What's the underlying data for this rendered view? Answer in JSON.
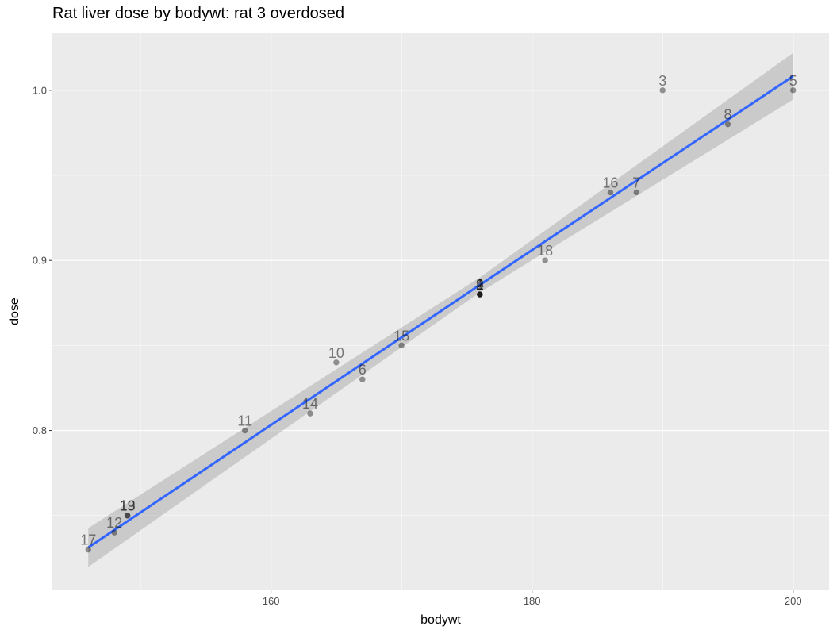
{
  "chart_data": {
    "type": "scatter",
    "title": "Rat liver dose by bodywt: rat 3 overdosed",
    "xlabel": "bodywt",
    "ylabel": "dose",
    "xlim": [
      143.25,
      202.75
    ],
    "ylim": [
      0.7065,
      1.0335
    ],
    "x_ticks": [
      160,
      180,
      200
    ],
    "x_tick_labels": [
      "160",
      "180",
      "200"
    ],
    "y_ticks": [
      0.8,
      0.9,
      1.0
    ],
    "y_tick_labels": [
      "0.8",
      "0.9",
      "1.0"
    ],
    "x_minor": [
      150,
      170,
      190
    ],
    "y_minor": [
      0.75,
      0.85,
      0.95
    ],
    "grid": true,
    "legend": "none",
    "colors": {
      "panel": "#ebebeb",
      "grid": "#ffffff",
      "point": "#000000",
      "fit_line": "#3366ff",
      "ribbon": "#999999"
    },
    "points": [
      {
        "label": "1",
        "x": 176,
        "y": 0.88
      },
      {
        "label": "2",
        "x": 176,
        "y": 0.88
      },
      {
        "label": "3",
        "x": 190,
        "y": 1.0
      },
      {
        "label": "4",
        "x": 176,
        "y": 0.88
      },
      {
        "label": "5",
        "x": 200,
        "y": 1.0
      },
      {
        "label": "6",
        "x": 167,
        "y": 0.83
      },
      {
        "label": "7",
        "x": 188,
        "y": 0.94
      },
      {
        "label": "8",
        "x": 195,
        "y": 0.98
      },
      {
        "label": "9",
        "x": 176,
        "y": 0.88
      },
      {
        "label": "10",
        "x": 165,
        "y": 0.84
      },
      {
        "label": "11",
        "x": 158,
        "y": 0.8
      },
      {
        "label": "12",
        "x": 148,
        "y": 0.74
      },
      {
        "label": "13",
        "x": 149,
        "y": 0.75
      },
      {
        "label": "14",
        "x": 163,
        "y": 0.81
      },
      {
        "label": "15",
        "x": 170,
        "y": 0.85
      },
      {
        "label": "16",
        "x": 186,
        "y": 0.94
      },
      {
        "label": "17",
        "x": 146,
        "y": 0.73
      },
      {
        "label": "18",
        "x": 181,
        "y": 0.9
      },
      {
        "label": "19",
        "x": 149,
        "y": 0.75
      }
    ],
    "fit": {
      "x": [
        146,
        176,
        200
      ],
      "y": [
        0.7312,
        0.8856,
        1.0083
      ],
      "ribbon_lower": [
        0.7198,
        0.8812,
        0.9946
      ],
      "ribbon_upper": [
        0.7426,
        0.89,
        1.022
      ]
    }
  }
}
